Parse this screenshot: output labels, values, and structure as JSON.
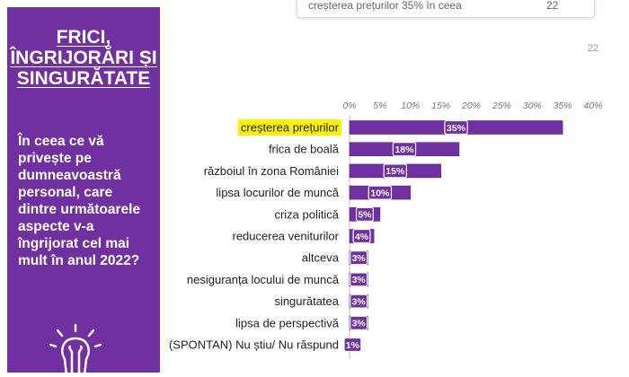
{
  "sidebar": {
    "title_lines": [
      "FRICI,",
      "ÎNGRIJORĂRI ȘI",
      "SINGURĂTATE"
    ],
    "question": "În ceea ce vă privește pe dumneavoastră personal, care dintre următoarele aspecte v-a îngrijorat cel mai mult în anul 2022?"
  },
  "top_box": {
    "text": "creșterea prețurilor 35% în ceea",
    "number": "22"
  },
  "page_number": "22",
  "colors": {
    "sidebar": "#7030a0",
    "bar": "#7030a0",
    "highlight": "#fff200",
    "bar_label_bg": "#7030a0"
  },
  "chart_data": {
    "type": "bar",
    "orientation": "horizontal",
    "categories": [
      "creșterea prețurilor",
      "frica de boală",
      "războiul în zona României",
      "lipsa locurilor de muncă",
      "criza politică",
      "reducerea veniturilor",
      "altceva",
      "nesiguranța locului de muncă",
      "singurătatea",
      "lipsa de perspectivă",
      "(SPONTAN) Nu știu/ Nu răspund"
    ],
    "values": [
      35,
      18,
      15,
      10,
      5,
      4,
      3,
      3,
      3,
      3,
      1
    ],
    "value_labels": [
      "35%",
      "18%",
      "15%",
      "10%",
      "5%",
      "4%",
      "3%",
      "3%",
      "3%",
      "3%",
      "1%"
    ],
    "highlighted_category": "creșterea prețurilor",
    "xlim": [
      0,
      40
    ],
    "xticks": [
      "0%",
      "5%",
      "10%",
      "15%",
      "20%",
      "25%",
      "30%",
      "35%",
      "40%"
    ],
    "axis_position": "top",
    "grid": false
  }
}
